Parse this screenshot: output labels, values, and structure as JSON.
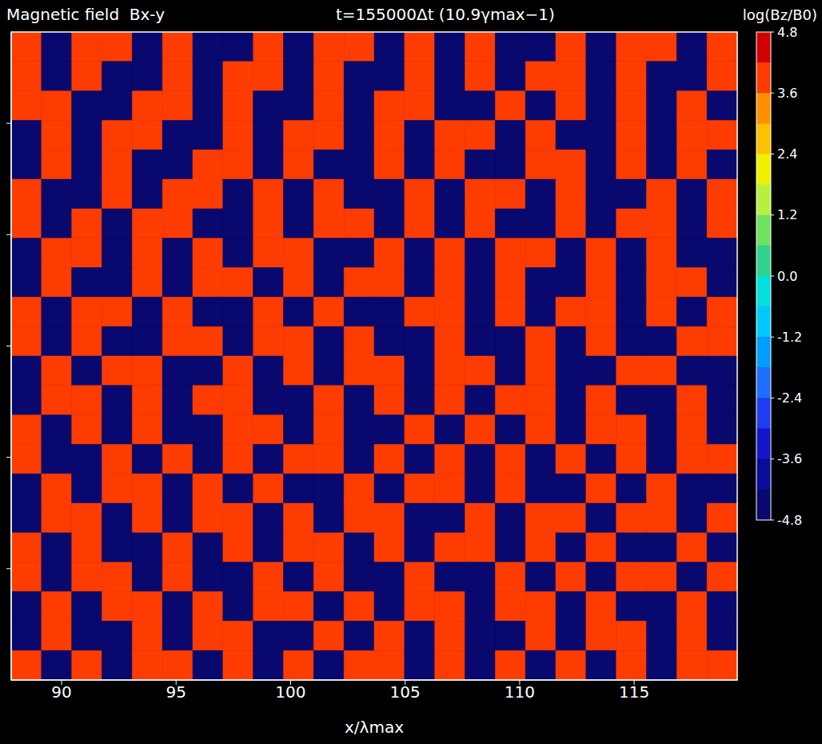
{
  "chart_data": {
    "type": "heatmap",
    "title": "t=155000Δt (10.9γmax−1)",
    "subtitle": "Magnetic field  Bx-y",
    "xlabel": "x/λmax",
    "xlim": [
      87.8,
      119.5
    ],
    "xticks": [
      90,
      95,
      100,
      105,
      110,
      115
    ],
    "ylim": [
      0,
      29.1
    ],
    "yticks": [
      5,
      10,
      15,
      20,
      25
    ],
    "tick_labels": "x",
    "grid": false,
    "cells": [
      [
        3.6,
        -4.2,
        3.6,
        3.6,
        -4.2,
        3.6,
        -4.2,
        -4.2,
        3.6,
        -4.2,
        3.6,
        3.6,
        -4.2,
        3.6,
        -4.2,
        3.6,
        -4.2,
        -4.2,
        3.6,
        -4.2,
        3.6,
        3.6,
        -4.2,
        3.6
      ],
      [
        3.6,
        -4.2,
        3.6,
        -4.2,
        -4.2,
        3.6,
        -4.2,
        3.6,
        3.6,
        -4.2,
        3.6,
        -4.2,
        -4.2,
        3.6,
        -4.2,
        3.6,
        -4.2,
        3.6,
        3.6,
        -4.2,
        3.6,
        -4.2,
        -4.2,
        3.6
      ],
      [
        3.6,
        3.6,
        -4.2,
        -4.2,
        3.6,
        3.6,
        -4.2,
        3.6,
        -4.2,
        -4.2,
        3.6,
        -4.2,
        3.6,
        3.6,
        -4.2,
        -4.2,
        3.6,
        -4.2,
        3.6,
        -4.2,
        3.6,
        -4.2,
        3.6,
        -4.2
      ],
      [
        -4.2,
        3.6,
        -4.2,
        3.6,
        3.6,
        -4.2,
        -4.2,
        3.6,
        -4.2,
        3.6,
        3.6,
        -4.2,
        3.6,
        -4.2,
        3.6,
        3.6,
        -4.2,
        3.6,
        -4.2,
        -4.2,
        3.6,
        -4.2,
        3.6,
        3.6
      ],
      [
        -4.2,
        3.6,
        -4.2,
        3.6,
        -4.2,
        -4.2,
        3.6,
        3.6,
        -4.2,
        3.6,
        -4.2,
        -4.2,
        3.6,
        -4.2,
        3.6,
        -4.2,
        -4.2,
        3.6,
        3.6,
        -4.2,
        3.6,
        -4.2,
        3.6,
        -4.2
      ],
      [
        3.6,
        -4.2,
        -4.2,
        3.6,
        -4.2,
        3.6,
        3.6,
        -4.2,
        3.6,
        -4.2,
        3.6,
        -4.2,
        -4.2,
        3.6,
        -4.2,
        3.6,
        3.6,
        -4.2,
        3.6,
        -4.2,
        -4.2,
        3.6,
        -4.2,
        3.6
      ],
      [
        3.6,
        -4.2,
        3.6,
        -4.2,
        3.6,
        3.6,
        -4.2,
        -4.2,
        3.6,
        -4.2,
        3.6,
        3.6,
        -4.2,
        3.6,
        -4.2,
        3.6,
        -4.2,
        -4.2,
        3.6,
        -4.2,
        3.6,
        3.6,
        -4.2,
        3.6
      ],
      [
        -4.2,
        3.6,
        3.6,
        -4.2,
        3.6,
        -4.2,
        3.6,
        -4.2,
        3.6,
        3.6,
        -4.2,
        -4.2,
        3.6,
        -4.2,
        3.6,
        -4.2,
        3.6,
        3.6,
        -4.2,
        3.6,
        -4.2,
        3.6,
        -4.2,
        -4.2
      ],
      [
        -4.2,
        3.6,
        -4.2,
        -4.2,
        3.6,
        -4.2,
        3.6,
        3.6,
        -4.2,
        3.6,
        -4.2,
        3.6,
        3.6,
        -4.2,
        3.6,
        -4.2,
        3.6,
        -4.2,
        -4.2,
        3.6,
        -4.2,
        3.6,
        3.6,
        -4.2
      ],
      [
        3.6,
        -4.2,
        3.6,
        3.6,
        -4.2,
        3.6,
        -4.2,
        -4.2,
        3.6,
        -4.2,
        3.6,
        -4.2,
        -4.2,
        3.6,
        3.6,
        -4.2,
        3.6,
        -4.2,
        3.6,
        3.6,
        -4.2,
        3.6,
        -4.2,
        3.6
      ],
      [
        3.6,
        -4.2,
        3.6,
        -4.2,
        -4.2,
        3.6,
        3.6,
        -4.2,
        3.6,
        3.6,
        -4.2,
        3.6,
        -4.2,
        -4.2,
        3.6,
        -4.2,
        -4.2,
        3.6,
        -4.2,
        3.6,
        -4.2,
        -4.2,
        3.6,
        3.6
      ],
      [
        -4.2,
        3.6,
        -4.2,
        3.6,
        3.6,
        -4.2,
        -4.2,
        3.6,
        -4.2,
        3.6,
        -4.2,
        3.6,
        3.6,
        -4.2,
        3.6,
        3.6,
        -4.2,
        3.6,
        -4.2,
        -4.2,
        3.6,
        3.6,
        -4.2,
        -4.2
      ],
      [
        -4.2,
        3.6,
        3.6,
        -4.2,
        3.6,
        -4.2,
        3.6,
        3.6,
        -4.2,
        -4.2,
        3.6,
        -4.2,
        3.6,
        -4.2,
        3.6,
        -4.2,
        3.6,
        3.6,
        -4.2,
        3.6,
        -4.2,
        -4.2,
        3.6,
        -4.2
      ],
      [
        3.6,
        -4.2,
        3.6,
        -4.2,
        3.6,
        -4.2,
        -4.2,
        3.6,
        3.6,
        -4.2,
        3.6,
        -4.2,
        -4.2,
        3.6,
        -4.2,
        3.6,
        -4.2,
        3.6,
        -4.2,
        3.6,
        3.6,
        -4.2,
        3.6,
        -4.2
      ],
      [
        3.6,
        -4.2,
        -4.2,
        3.6,
        -4.2,
        3.6,
        -4.2,
        3.6,
        -4.2,
        3.6,
        3.6,
        -4.2,
        3.6,
        -4.2,
        3.6,
        -4.2,
        3.6,
        -4.2,
        3.6,
        -4.2,
        3.6,
        -4.2,
        3.6,
        3.6
      ],
      [
        -4.2,
        3.6,
        -4.2,
        3.6,
        3.6,
        -4.2,
        3.6,
        -4.2,
        3.6,
        -4.2,
        -4.2,
        3.6,
        -4.2,
        3.6,
        3.6,
        -4.2,
        3.6,
        -4.2,
        -4.2,
        3.6,
        -4.2,
        3.6,
        -4.2,
        -4.2
      ],
      [
        -4.2,
        3.6,
        3.6,
        -4.2,
        3.6,
        -4.2,
        3.6,
        3.6,
        -4.2,
        3.6,
        -4.2,
        3.6,
        3.6,
        -4.2,
        -4.2,
        3.6,
        -4.2,
        3.6,
        3.6,
        -4.2,
        3.6,
        3.6,
        -4.2,
        3.6
      ],
      [
        3.6,
        -4.2,
        3.6,
        -4.2,
        -4.2,
        3.6,
        -4.2,
        3.6,
        -4.2,
        3.6,
        3.6,
        -4.2,
        3.6,
        -4.2,
        3.6,
        3.6,
        -4.2,
        3.6,
        -4.2,
        3.6,
        -4.2,
        -4.2,
        3.6,
        -4.2
      ],
      [
        3.6,
        -4.2,
        3.6,
        3.6,
        -4.2,
        3.6,
        -4.2,
        -4.2,
        3.6,
        -4.2,
        3.6,
        -4.2,
        -4.2,
        3.6,
        -4.2,
        -4.2,
        3.6,
        -4.2,
        3.6,
        -4.2,
        3.6,
        3.6,
        -4.2,
        3.6
      ],
      [
        -4.2,
        3.6,
        -4.2,
        3.6,
        3.6,
        -4.2,
        3.6,
        -4.2,
        3.6,
        3.6,
        -4.2,
        3.6,
        -4.2,
        3.6,
        3.6,
        -4.2,
        3.6,
        3.6,
        -4.2,
        3.6,
        -4.2,
        -4.2,
        3.6,
        -4.2
      ],
      [
        -4.2,
        3.6,
        -4.2,
        -4.2,
        3.6,
        -4.2,
        3.6,
        3.6,
        -4.2,
        -4.2,
        3.6,
        -4.2,
        3.6,
        -4.2,
        3.6,
        -4.2,
        -4.2,
        3.6,
        -4.2,
        3.6,
        3.6,
        -4.2,
        3.6,
        -4.2
      ],
      [
        3.6,
        -4.2,
        3.6,
        -4.2,
        3.6,
        3.6,
        -4.2,
        3.6,
        -4.2,
        3.6,
        -4.2,
        3.6,
        3.6,
        -4.2,
        3.6,
        -4.2,
        3.6,
        -4.2,
        3.6,
        -4.2,
        3.6,
        -4.2,
        3.6,
        3.6
      ]
    ],
    "colorbar": {
      "label": "log(Bz/B0)",
      "range": [
        -4.8,
        4.8
      ],
      "ticks": [
        4.8,
        3.6,
        2.4,
        1.2,
        {
          "value": 0,
          "label": "0.0"
        },
        -1.2,
        -2.4,
        -3.6,
        -4.8
      ]
    }
  }
}
